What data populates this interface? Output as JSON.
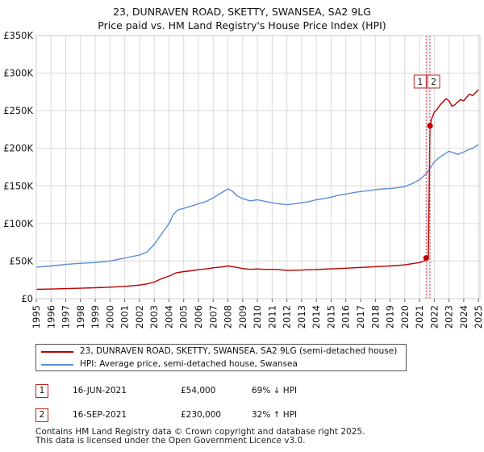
{
  "title_line1": "23, DUNRAVEN ROAD, SKETTY, SWANSEA, SA2 9LG",
  "title_line2": "Price paid vs. HM Land Registry's House Price Index (HPI)",
  "chart_data": {
    "type": "line",
    "title": "23, DUNRAVEN ROAD, SKETTY, SWANSEA, SA2 9LG — Price paid vs. HM Land Registry's House Price Index (HPI)",
    "xlabel": "",
    "ylabel": "",
    "xlim": [
      1995,
      2025.1
    ],
    "ylim": [
      0,
      350000
    ],
    "grid": true,
    "y_ticks": [
      0,
      50000,
      100000,
      150000,
      200000,
      250000,
      300000,
      350000
    ],
    "y_tick_labels": [
      "£0",
      "£50K",
      "£100K",
      "£150K",
      "£200K",
      "£250K",
      "£300K",
      "£350K"
    ],
    "x_ticks": [
      1995,
      1996,
      1997,
      1998,
      1999,
      2000,
      2001,
      2002,
      2003,
      2004,
      2005,
      2006,
      2007,
      2008,
      2009,
      2010,
      2011,
      2012,
      2013,
      2014,
      2015,
      2016,
      2017,
      2018,
      2019,
      2020,
      2021,
      2022,
      2023,
      2024,
      2025
    ],
    "x_tick_labels": [
      "1995",
      "1996",
      "1997",
      "1998",
      "1999",
      "2000",
      "2001",
      "2002",
      "2003",
      "2004",
      "2005",
      "2006",
      "2007",
      "2008",
      "2009",
      "2010",
      "2011",
      "2012",
      "2013",
      "2014",
      "2015",
      "2016",
      "2017",
      "2018",
      "2019",
      "2020",
      "2021",
      "2022",
      "2023",
      "2024",
      "2025"
    ],
    "series": [
      {
        "name": "23, DUNRAVEN ROAD, SKETTY, SWANSEA, SA2 9LG (semi-detached house)",
        "color": "#bb0000",
        "x": [
          1995.0,
          1996.0,
          1997.0,
          1998.0,
          1999.0,
          2000.0,
          2001.0,
          2002.0,
          2002.5,
          2003.0,
          2003.5,
          2004.0,
          2004.5,
          2005.0,
          2005.5,
          2006.0,
          2006.5,
          2007.0,
          2007.5,
          2008.0,
          2008.5,
          2009.0,
          2009.5,
          2010.0,
          2010.5,
          2011.0,
          2011.5,
          2012.0,
          2012.5,
          2013.0,
          2013.5,
          2014.0,
          2014.5,
          2015.0,
          2015.5,
          2016.0,
          2016.5,
          2017.0,
          2017.5,
          2018.0,
          2018.5,
          2019.0,
          2019.5,
          2020.0,
          2020.5,
          2021.0,
          2021.45,
          2021.5,
          2021.6,
          2021.71,
          2021.8,
          2021.9,
          2022.0,
          2022.2,
          2022.4,
          2022.6,
          2022.8,
          2023.0,
          2023.2,
          2023.4,
          2023.6,
          2023.8,
          2024.0,
          2024.2,
          2024.4,
          2024.6,
          2024.8,
          2025.0
        ],
        "values": [
          12500,
          12800,
          13300,
          13800,
          14500,
          15200,
          16300,
          18000,
          19500,
          22000,
          26500,
          30000,
          34500,
          36000,
          37000,
          38500,
          39500,
          41000,
          42000,
          43500,
          42000,
          40000,
          39000,
          39500,
          39000,
          39000,
          38500,
          37500,
          37800,
          38000,
          38500,
          38800,
          39200,
          39600,
          40000,
          40500,
          41000,
          41500,
          42000,
          42500,
          43000,
          43500,
          44000,
          45000,
          46500,
          48000,
          51000,
          54000,
          54000,
          230000,
          238000,
          243000,
          248000,
          252000,
          258000,
          262000,
          266000,
          263000,
          256000,
          258000,
          262000,
          265000,
          263000,
          268000,
          272000,
          270000,
          274000,
          278000
        ]
      },
      {
        "name": "HPI: Average price, semi-detached house, Swansea",
        "color": "#5b8ed6",
        "x": [
          1995.0,
          1996.0,
          1997.0,
          1998.0,
          1999.0,
          2000.0,
          2000.5,
          2001.0,
          2001.5,
          2002.0,
          2002.5,
          2003.0,
          2003.5,
          2004.0,
          2004.3,
          2004.6,
          2005.0,
          2005.5,
          2006.0,
          2006.5,
          2007.0,
          2007.5,
          2008.0,
          2008.3,
          2008.6,
          2009.0,
          2009.5,
          2010.0,
          2010.5,
          2011.0,
          2011.5,
          2012.0,
          2012.5,
          2013.0,
          2013.5,
          2014.0,
          2014.5,
          2015.0,
          2015.5,
          2016.0,
          2016.5,
          2017.0,
          2017.5,
          2018.0,
          2018.5,
          2019.0,
          2019.5,
          2020.0,
          2020.5,
          2021.0,
          2021.5,
          2022.0,
          2022.3,
          2022.6,
          2023.0,
          2023.3,
          2023.6,
          2024.0,
          2024.3,
          2024.6,
          2025.0
        ],
        "values": [
          42000,
          43500,
          45500,
          47000,
          48000,
          50000,
          52000,
          54000,
          56000,
          58000,
          62000,
          72000,
          86000,
          100000,
          112000,
          118000,
          120000,
          123000,
          126000,
          129000,
          134000,
          140000,
          146000,
          143000,
          137000,
          133000,
          130000,
          131500,
          129500,
          127500,
          126000,
          125000,
          126000,
          127500,
          129000,
          131500,
          133000,
          135000,
          137500,
          139000,
          141000,
          142500,
          143500,
          145000,
          146000,
          146500,
          147500,
          149000,
          153000,
          158000,
          167000,
          182000,
          187000,
          191000,
          196000,
          194000,
          192000,
          195000,
          198000,
          200000,
          205000
        ]
      }
    ],
    "annotations": [
      {
        "label": "1",
        "x": 2021.45,
        "y": 54000
      },
      {
        "label": "2",
        "x": 2021.71,
        "y": 230000
      }
    ]
  },
  "legend": {
    "items": [
      {
        "label": "23, DUNRAVEN ROAD, SKETTY, SWANSEA, SA2 9LG (semi-detached house)",
        "color": "#bb0000"
      },
      {
        "label": "HPI: Average price, semi-detached house, Swansea",
        "color": "#5b8ed6"
      }
    ]
  },
  "transactions": [
    {
      "num": "1",
      "date": "16-JUN-2021",
      "price": "£54,000",
      "hpi": "69% ↓ HPI"
    },
    {
      "num": "2",
      "date": "16-SEP-2021",
      "price": "£230,000",
      "hpi": "32% ↑ HPI"
    }
  ],
  "footer": {
    "line1": "Contains HM Land Registry data © Crown copyright and database right 2025.",
    "line2": "This data is licensed under the Open Government Licence v3.0."
  }
}
